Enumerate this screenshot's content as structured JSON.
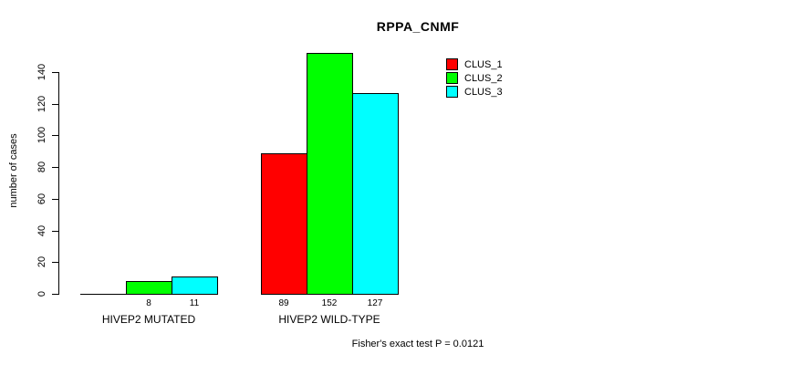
{
  "title": "RPPA_CNMF",
  "footer": "Fisher's exact test P = 0.0121",
  "legend": {
    "items": [
      {
        "label": "CLUS_1",
        "color": "#ff0000"
      },
      {
        "label": "CLUS_2",
        "color": "#00ff00"
      },
      {
        "label": "CLUS_3",
        "color": "#00ffff"
      }
    ]
  },
  "chart_data": {
    "type": "bar",
    "title": "RPPA_CNMF",
    "xlabel": "",
    "ylabel": "number of cases",
    "categories": [
      "HIVEP2 MUTATED",
      "HIVEP2 WILD-TYPE"
    ],
    "series": [
      {
        "name": "CLUS_1",
        "color": "#ff0000",
        "values": [
          0,
          89
        ]
      },
      {
        "name": "CLUS_2",
        "color": "#00ff00",
        "values": [
          8,
          152
        ]
      },
      {
        "name": "CLUS_3",
        "color": "#00ffff",
        "values": [
          11,
          127
        ]
      }
    ],
    "bar_value_labels": [
      [
        "",
        "8",
        "11"
      ],
      [
        "89",
        "152",
        "127"
      ]
    ],
    "yticks": [
      0,
      20,
      40,
      60,
      80,
      100,
      120,
      140
    ],
    "ylim": [
      0,
      157
    ],
    "grid": false,
    "legend_position": "top-right",
    "annotation": "Fisher's exact test P = 0.0121"
  }
}
